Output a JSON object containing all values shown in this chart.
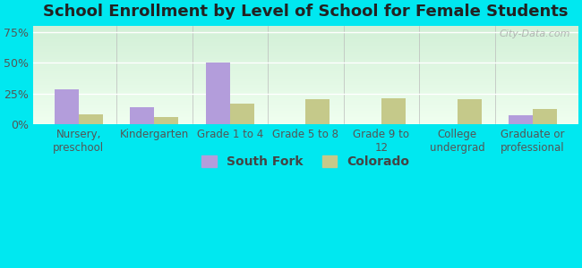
{
  "title": "School Enrollment by Level of School for Female Students",
  "categories": [
    "Nursery,\npreschool",
    "Kindergarten",
    "Grade 1 to 4",
    "Grade 5 to 8",
    "Grade 9 to\n12",
    "College\nundergrad",
    "Graduate or\nprofessional"
  ],
  "south_fork": [
    28,
    14,
    50,
    0,
    0,
    0,
    7
  ],
  "colorado": [
    8,
    6,
    17,
    20,
    21,
    20,
    12
  ],
  "bar_color_sf": "#b39ddb",
  "bar_color_co": "#c5c98a",
  "background_outer": "#00e8f0",
  "yticks": [
    0,
    25,
    50,
    75
  ],
  "ylim": [
    0,
    80
  ],
  "bar_width": 0.32,
  "legend_sf": "South Fork",
  "legend_co": "Colorado",
  "title_fontsize": 13,
  "axis_fontsize": 8.5,
  "tick_fontsize": 9,
  "watermark": "City-Data.com"
}
